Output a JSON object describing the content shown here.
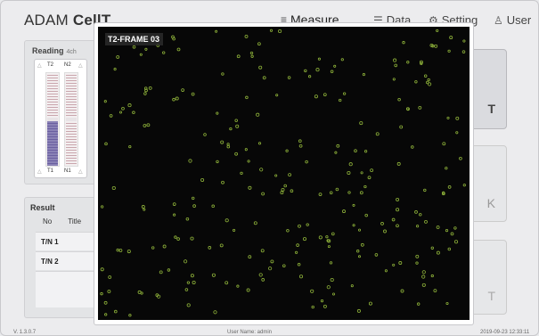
{
  "header": {
    "brand_prefix": "ADAM ",
    "brand_bold": "CellT",
    "nav": [
      {
        "label": "Measure",
        "icon": "menu-icon",
        "active": true
      },
      {
        "label": "Data",
        "icon": "list-icon",
        "active": false
      },
      {
        "label": "Setting",
        "icon": "gear-icon",
        "active": false
      },
      {
        "label": "User",
        "icon": "user-icon",
        "active": false
      }
    ]
  },
  "reading": {
    "title": "Reading",
    "subtitle": "4ch",
    "chip_labels": {
      "top_left": "T2",
      "top_right": "N2",
      "bottom_left": "T1",
      "bottom_right": "N1"
    }
  },
  "result": {
    "title": "Result",
    "columns": [
      "No",
      "Title"
    ],
    "rows": [
      "T/N 1",
      "T/N 2"
    ]
  },
  "right_buttons": [
    {
      "letter": "T"
    },
    {
      "letter": "K"
    },
    {
      "letter": "T"
    }
  ],
  "frame": {
    "label": "T2-FRAME 03",
    "dot_color": "#8fb33a"
  },
  "footer": {
    "version": "V. 1.3.0.7",
    "user": "User Name: admin",
    "timestamp": "2019-09-23 12:33:11"
  }
}
